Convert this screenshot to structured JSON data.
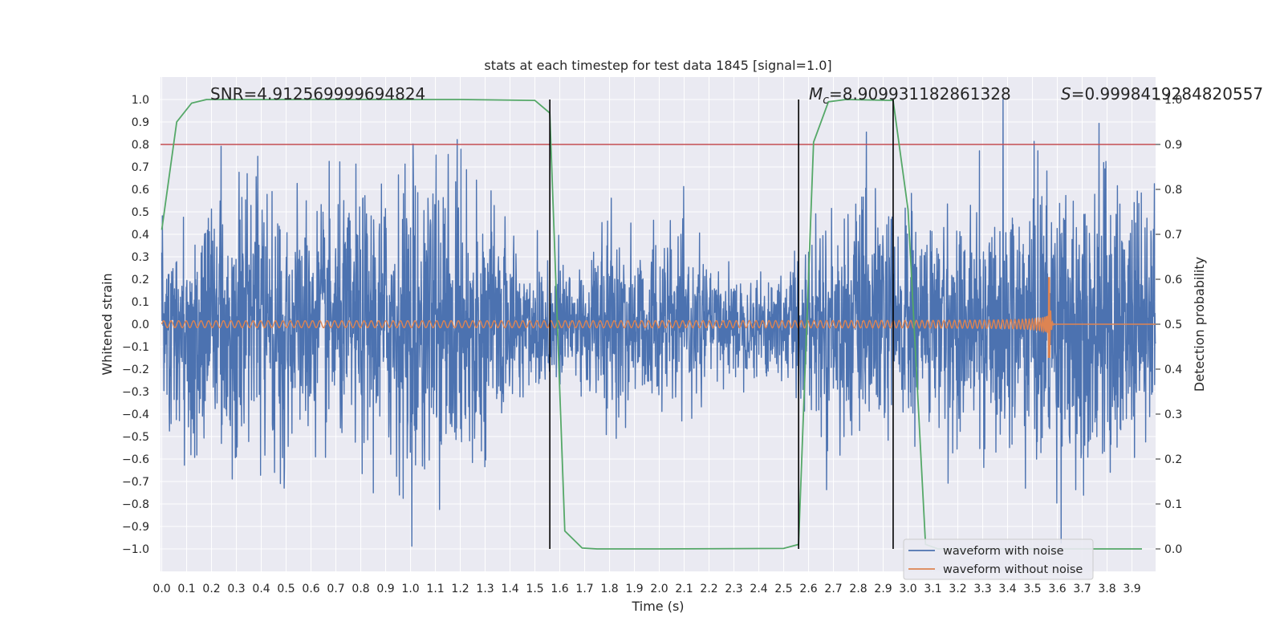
{
  "chart_data": {
    "type": "line",
    "title": "stats at each timestep for test data 1845 [signal=1.0]",
    "xlabel": "Time (s)",
    "ylabel": "Whitened strain",
    "y2label": "Detection probability",
    "xlim": [
      -0.005,
      3.995
    ],
    "ylim": [
      -1.1,
      1.1
    ],
    "y2lim": [
      -0.05,
      1.05
    ],
    "xticks": [
      0.0,
      0.1,
      0.2,
      0.3,
      0.4,
      0.5,
      0.6,
      0.7,
      0.8,
      0.9,
      1.0,
      1.1,
      1.2,
      1.3,
      1.4,
      1.5,
      1.6,
      1.7,
      1.8,
      1.9,
      2.0,
      2.1,
      2.2,
      2.3,
      2.4,
      2.5,
      2.6,
      2.7,
      2.8,
      2.9,
      3.0,
      3.1,
      3.2,
      3.3,
      3.4,
      3.5,
      3.6,
      3.7,
      3.8,
      3.9
    ],
    "xtick_labels": [
      "0.0",
      "0.1",
      "0.2",
      "0.3",
      "0.4",
      "0.5",
      "0.6",
      "0.7",
      "0.8",
      "0.9",
      "1.0",
      "1.1",
      "1.2",
      "1.3",
      "1.4",
      "1.5",
      "1.6",
      "1.7",
      "1.8",
      "1.9",
      "2.0",
      "2.1",
      "2.2",
      "2.3",
      "2.4",
      "2.5",
      "2.6",
      "2.7",
      "2.8",
      "2.9",
      "3.0",
      "3.1",
      "3.2",
      "3.3",
      "3.4",
      "3.5",
      "3.6",
      "3.7",
      "3.8",
      "3.9"
    ],
    "yticks": [
      1.0,
      0.9,
      0.8,
      0.7,
      0.6,
      0.5,
      0.4,
      0.3,
      0.2,
      0.1,
      0.0,
      -0.1,
      -0.2,
      -0.3,
      -0.4,
      -0.5,
      -0.6,
      -0.7,
      -0.8,
      -0.9,
      -1.0
    ],
    "ytick_labels": [
      "1.0",
      "0.9",
      "0.8",
      "0.7",
      "0.6",
      "0.5",
      "0.4",
      "0.3",
      "0.2",
      "0.1",
      "0.0",
      "−0.1",
      "−0.2",
      "−0.3",
      "−0.4",
      "−0.5",
      "−0.6",
      "−0.7",
      "−0.8",
      "−0.9",
      "−1.0"
    ],
    "y2ticks": [
      0.0,
      0.1,
      0.2,
      0.3,
      0.4,
      0.5,
      0.6,
      0.7,
      0.8,
      0.9,
      1.0
    ],
    "y2tick_labels": [
      "0.0",
      "0.1",
      "0.2",
      "0.3",
      "0.4",
      "0.5",
      "0.6",
      "0.7",
      "0.8",
      "0.9",
      "1.0"
    ],
    "grid": true,
    "legend_position": "bottom-right",
    "series": [
      {
        "name": "waveform with noise",
        "color": "#4c72b0",
        "kind": "noise",
        "amplitude_typical": 0.5,
        "amplitude_max": 1.0,
        "x_range": [
          0.0,
          3.995
        ]
      },
      {
        "name": "waveform without noise",
        "color": "#dd8452",
        "kind": "chirp",
        "merger_time": 3.57,
        "peak_positive": 0.21,
        "peak_negative": -0.15,
        "base_amplitude": 0.015,
        "x_range": [
          0.0,
          3.995
        ]
      }
    ],
    "detection_probability": {
      "name": "detection probability",
      "color": "#55a868",
      "axis": "right",
      "x": [
        0.0,
        0.06,
        0.12,
        0.18,
        0.6,
        1.2,
        1.5,
        1.56,
        1.62,
        1.69,
        1.75,
        2.0,
        2.5,
        2.56,
        2.62,
        2.68,
        2.75,
        2.94,
        3.0,
        3.07,
        3.12,
        3.94
      ],
      "y": [
        0.71,
        0.95,
        0.992,
        1.0,
        1.0,
        1.0,
        0.998,
        0.97,
        0.04,
        0.002,
        0.0,
        0.0,
        0.001,
        0.01,
        0.905,
        0.995,
        1.0,
        0.998,
        0.755,
        0.01,
        0.0,
        0.0
      ]
    },
    "threshold": {
      "value": 0.9,
      "axis": "right",
      "color": "#c44e52"
    },
    "vertical_lines": [
      1.56,
      2.56,
      2.94
    ],
    "vertical_line_y_range": [
      0.0,
      1.0
    ],
    "annotations": {
      "snr": "SNR=4.912569999694824",
      "mc_symbol": "M",
      "mc_subscript": "c",
      "mc_value": "=8.909931182861328",
      "s_symbol": "S",
      "s_value": "=0.9998419284820557"
    }
  }
}
